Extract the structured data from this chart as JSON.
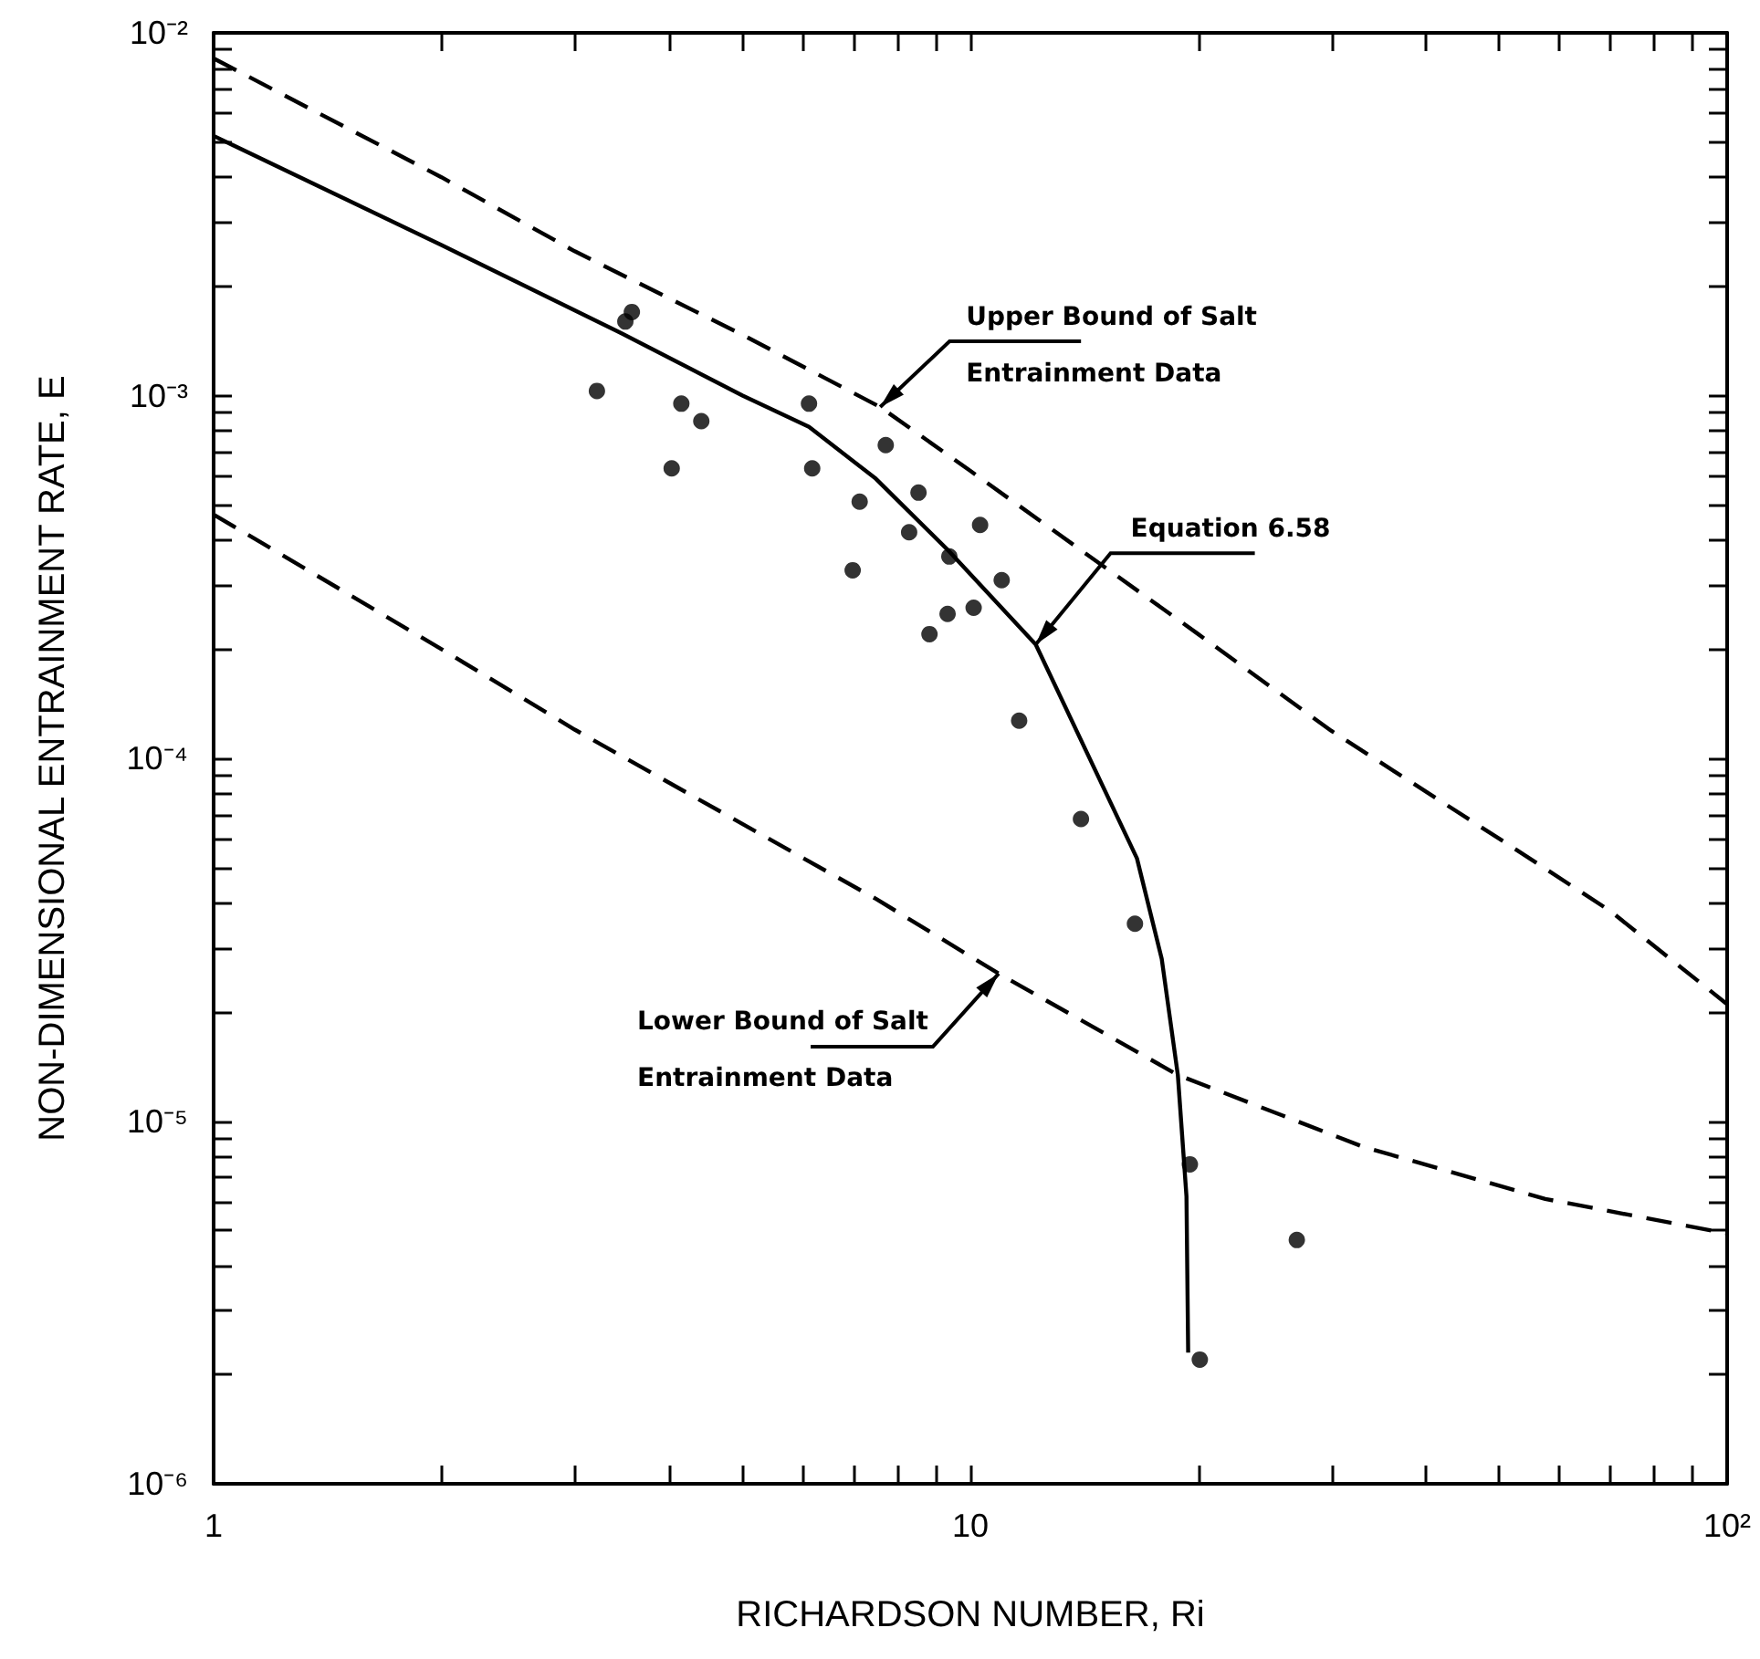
{
  "chart_data": {
    "type": "scatter",
    "xlabel": "RICHARDSON NUMBER, Ri",
    "ylabel": "NON-DIMENSIONAL ENTRAINMENT RATE, E",
    "log": "xy",
    "xlim": [
      1,
      100
    ],
    "ylim": [
      1e-06,
      0.01
    ],
    "xticks": [
      1,
      {
        "value": 2,
        "label": null
      },
      {
        "value": 3,
        "label": null
      },
      {
        "value": 4,
        "label": null
      },
      {
        "value": 5,
        "label": null
      },
      {
        "value": 6,
        "label": null
      },
      {
        "value": 7,
        "label": null
      },
      {
        "value": 8,
        "label": null
      },
      {
        "value": 9,
        "label": null
      },
      10,
      {
        "value": 20,
        "label": null
      },
      {
        "value": 30,
        "label": null
      },
      {
        "value": 40,
        "label": null
      },
      {
        "value": 50,
        "label": null
      },
      {
        "value": 60,
        "label": null
      },
      {
        "value": 70,
        "label": null
      },
      {
        "value": 80,
        "label": null
      },
      {
        "value": 90,
        "label": null
      },
      {
        "value": 100,
        "label": "10²"
      }
    ],
    "yticks": [
      {
        "value": 1e-06,
        "label": "10⁻⁶"
      },
      {
        "value": 2e-06,
        "label": null
      },
      {
        "value": 3e-06,
        "label": null
      },
      {
        "value": 4e-06,
        "label": null
      },
      {
        "value": 5e-06,
        "label": null
      },
      {
        "value": 6e-06,
        "label": null
      },
      {
        "value": 7e-06,
        "label": null
      },
      {
        "value": 8e-06,
        "label": null
      },
      {
        "value": 9e-06,
        "label": null
      },
      {
        "value": 1e-05,
        "label": "10⁻⁵"
      },
      {
        "value": 2e-05,
        "label": null
      },
      {
        "value": 3e-05,
        "label": null
      },
      {
        "value": 4e-05,
        "label": null
      },
      {
        "value": 5e-05,
        "label": null
      },
      {
        "value": 6e-05,
        "label": null
      },
      {
        "value": 7e-05,
        "label": null
      },
      {
        "value": 8e-05,
        "label": null
      },
      {
        "value": 9e-05,
        "label": null
      },
      {
        "value": 0.0001,
        "label": "10⁻⁴"
      },
      {
        "value": 0.0002,
        "label": null
      },
      {
        "value": 0.0003,
        "label": null
      },
      {
        "value": 0.0004,
        "label": null
      },
      {
        "value": 0.0005,
        "label": null
      },
      {
        "value": 0.0006,
        "label": null
      },
      {
        "value": 0.0007,
        "label": null
      },
      {
        "value": 0.0008,
        "label": null
      },
      {
        "value": 0.0009,
        "label": null
      },
      {
        "value": 0.001,
        "label": "10⁻³"
      },
      {
        "value": 0.002,
        "label": null
      },
      {
        "value": 0.003,
        "label": null
      },
      {
        "value": 0.004,
        "label": null
      },
      {
        "value": 0.005,
        "label": null
      },
      {
        "value": 0.006,
        "label": null
      },
      {
        "value": 0.007,
        "label": null
      },
      {
        "value": 0.008,
        "label": null
      },
      {
        "value": 0.009,
        "label": null
      },
      {
        "value": 0.01,
        "label": "10⁻²"
      }
    ],
    "grid": false,
    "marker": "circle",
    "series": [
      {
        "color": "#000000",
        "x": [
          3.21,
          3.5,
          3.57,
          4.15,
          4.41,
          4.03,
          6.12,
          6.18,
          7.14,
          6.99,
          7.73,
          8.54,
          8.3,
          10.3,
          9.38,
          11.0,
          9.33,
          10.1,
          8.83,
          11.6,
          14.0,
          16.5,
          19.5,
          20.1,
          27.0
        ],
        "values": [
          0.00103,
          0.0016,
          0.0017,
          0.00095,
          0.00085,
          0.00063,
          0.00095,
          0.00063,
          0.00051,
          0.00033,
          0.00073,
          0.00054,
          0.00042,
          0.00044,
          0.00036,
          0.00031,
          0.00025,
          0.00026,
          0.00022,
          0.000127,
          6.8e-05,
          3.5e-05,
          7.6e-06,
          2.2e-06,
          4.7e-06
        ]
      },
      {
        "type": "line",
        "color": "#000000",
        "marker": "none",
        "line_style": "dashed",
        "x": [
          1,
          2,
          3,
          5,
          7.6,
          10,
          20,
          30,
          50,
          70,
          100
        ],
        "values": [
          0.0085,
          0.004,
          0.0025,
          0.00147,
          0.00093,
          0.00062,
          0.00022,
          0.000119,
          6e-05,
          3.8e-05,
          2.1e-05
        ]
      },
      {
        "type": "line",
        "color": "#000000",
        "marker": "none",
        "line_style": "solid",
        "x": [
          1,
          2,
          3.45,
          5,
          6.12,
          7.5,
          9.4,
          12.2,
          16.6,
          17.9,
          18.8,
          19.3,
          19.4
        ],
        "values": [
          0.0052,
          0.0026,
          0.00149,
          0.001,
          0.00082,
          0.00059,
          0.00037,
          0.000206,
          5.3e-05,
          2.8e-05,
          1.34e-05,
          6.2e-06,
          2.3e-06
        ]
      },
      {
        "type": "line",
        "color": "#000000",
        "marker": "none",
        "line_style": "dashed",
        "x": [
          1,
          2,
          3,
          6.02,
          7.5,
          10.9,
          18.8,
          33,
          57.5,
          100
        ],
        "values": [
          0.00047,
          0.0002,
          0.00012,
          5.3e-05,
          4.1e-05,
          2.55e-05,
          1.34e-05,
          8.5e-06,
          6.1e-06,
          4.9e-06
        ]
      }
    ],
    "annotations": [
      {
        "text": "Upper Bound of Salt Entrainment Data",
        "x": 7.6,
        "y": 0.00093
      },
      {
        "text": "Equation 6.58",
        "x": 12.2,
        "y": 0.000206
      },
      {
        "text": "Lower Bound of Salt Entrainment Data",
        "x": 10.9,
        "y": 2.55e-05
      }
    ]
  }
}
